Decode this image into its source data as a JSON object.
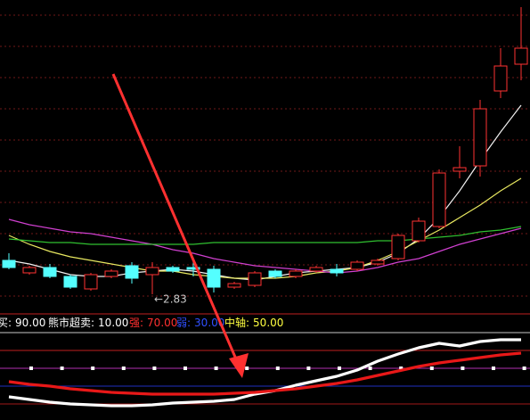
{
  "chart_data": [
    {
      "type": "candlestick",
      "open": [
        3.02,
        2.95,
        2.98,
        2.93,
        2.86,
        2.93,
        2.99,
        2.94,
        2.98,
        2.98,
        2.97,
        2.87,
        2.88,
        2.96,
        2.93,
        2.96,
        2.97,
        2.97,
        3.0,
        3.03,
        3.13,
        3.21,
        3.52,
        3.55,
        3.97,
        4.12
      ],
      "high": [
        3.06,
        2.99,
        3.0,
        2.94,
        2.95,
        2.97,
        3.01,
        3.01,
        2.99,
        3.01,
        2.99,
        2.9,
        2.96,
        2.97,
        2.97,
        2.99,
        3.0,
        3.02,
        3.03,
        3.17,
        3.26,
        3.53,
        3.66,
        3.92,
        4.21,
        4.44
      ],
      "low": [
        2.97,
        2.94,
        2.92,
        2.86,
        2.85,
        2.92,
        2.89,
        2.83,
        2.95,
        2.93,
        2.84,
        2.86,
        2.87,
        2.92,
        2.92,
        2.95,
        2.93,
        2.96,
        2.99,
        3.02,
        3.12,
        3.2,
        3.48,
        3.49,
        3.93,
        4.03
      ],
      "close": [
        2.98,
        2.98,
        2.93,
        2.87,
        2.94,
        2.96,
        2.92,
        2.98,
        2.96,
        2.97,
        2.87,
        2.89,
        2.95,
        2.93,
        2.96,
        2.98,
        2.95,
        3.01,
        3.02,
        3.16,
        3.24,
        3.51,
        3.54,
        3.87,
        4.11,
        4.21
      ],
      "up_color": "#ff3232",
      "down_color": "#54ffff",
      "ylim": [
        2.75,
        4.48
      ],
      "lines": [
        {
          "color": "#f0f0f0",
          "values": [
            3.02,
            3.0,
            2.97,
            2.94,
            2.93,
            2.93,
            2.95,
            2.96,
            2.97,
            2.96,
            2.94,
            2.92,
            2.91,
            2.93,
            2.95,
            2.96,
            2.97,
            2.98,
            3.01,
            3.06,
            3.14,
            3.26,
            3.41,
            3.58,
            3.74,
            3.89
          ]
        },
        {
          "color": "#e8e860",
          "values": [
            3.16,
            3.11,
            3.07,
            3.04,
            3.02,
            3.0,
            2.98,
            2.96,
            2.96,
            2.94,
            2.93,
            2.92,
            2.92,
            2.92,
            2.93,
            2.95,
            2.96,
            2.98,
            3.02,
            3.07,
            3.13,
            3.19,
            3.26,
            3.33,
            3.41,
            3.48
          ]
        },
        {
          "color": "#d040d0",
          "values": [
            3.25,
            3.22,
            3.2,
            3.18,
            3.17,
            3.15,
            3.13,
            3.11,
            3.08,
            3.06,
            3.03,
            3.01,
            2.99,
            2.98,
            2.97,
            2.96,
            2.95,
            2.96,
            2.98,
            3.01,
            3.03,
            3.07,
            3.11,
            3.14,
            3.17,
            3.2
          ]
        },
        {
          "color": "#30c030",
          "values": [
            3.14,
            3.13,
            3.12,
            3.12,
            3.11,
            3.11,
            3.11,
            3.11,
            3.11,
            3.11,
            3.12,
            3.12,
            3.12,
            3.12,
            3.12,
            3.12,
            3.12,
            3.12,
            3.13,
            3.13,
            3.14,
            3.15,
            3.16,
            3.18,
            3.19,
            3.21
          ]
        }
      ],
      "annotation": "←2.83"
    },
    {
      "type": "line",
      "ylim": [
        -8,
        110
      ],
      "levels": [
        {
          "name": "买:",
          "value": 90,
          "value_label": "90.00",
          "color": "#ffffff",
          "line_color": "#c8c8c8"
        },
        {
          "name": "熊市超卖:",
          "value": 10,
          "value_label": "10.00",
          "color": "#ffffff",
          "line_color": "#a01818"
        },
        {
          "name": "强:",
          "value": 70,
          "value_label": "70.00",
          "color": "#ff3030",
          "line_color": "#c02020"
        },
        {
          "name": "弱:",
          "value": 30,
          "value_label": "30.00",
          "color": "#3050ff",
          "line_color": "#2030c0"
        },
        {
          "name": "中轴:",
          "value": 50,
          "value_label": "50.00",
          "color": "#ffff40",
          "line_color": "#b030b0"
        }
      ],
      "series": [
        {
          "color": "#ffffff",
          "values": [
            18,
            15,
            12,
            10,
            9,
            8,
            8,
            9,
            11,
            12,
            13,
            15,
            21,
            25,
            31,
            36,
            41,
            48,
            58,
            66,
            73,
            78,
            75,
            80,
            82,
            82
          ]
        },
        {
          "color": "#e81818",
          "values": [
            35,
            32,
            30,
            27,
            25,
            23,
            22,
            21,
            21,
            21,
            21,
            22,
            23,
            25,
            27,
            30,
            33,
            37,
            42,
            47,
            52,
            56,
            59,
            62,
            65,
            67
          ]
        }
      ]
    }
  ]
}
